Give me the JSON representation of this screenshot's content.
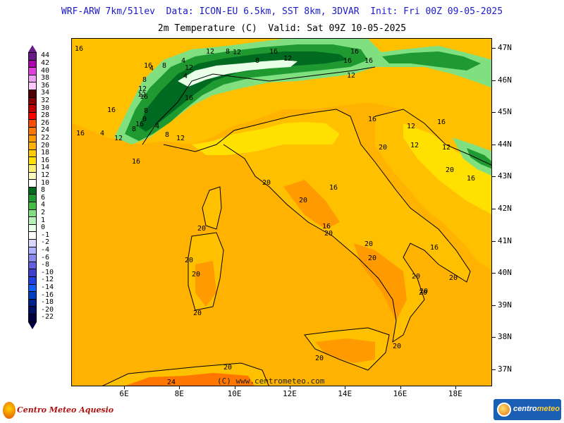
{
  "header": {
    "line1": "WRF-ARW 7km/51lev  Data: ICON-EU 6.5km, SST 8km, 3DVAR  Init: Fri 00Z 09-05-2025",
    "line2": "2m Temperature (C)  Valid: Sat 09Z 10-05-2025"
  },
  "legend": {
    "values": [
      "44",
      "42",
      "40",
      "38",
      "36",
      "34",
      "32",
      "30",
      "28",
      "26",
      "24",
      "22",
      "20",
      "18",
      "16",
      "14",
      "12",
      "10",
      "8",
      "6",
      "4",
      "2",
      "1",
      "0",
      "-1",
      "-2",
      "-4",
      "-6",
      "-8",
      "-10",
      "-12",
      "-14",
      "-16",
      "-18",
      "-20",
      "-22"
    ],
    "colors": [
      "#6a1a8a",
      "#b000b0",
      "#e040e0",
      "#f0a0f0",
      "#ffc8ff",
      "#500000",
      "#8a0000",
      "#c00000",
      "#ff0000",
      "#ff4d00",
      "#ff7700",
      "#ff9a00",
      "#ffb300",
      "#ffcc00",
      "#ffe000",
      "#fff070",
      "#fffbc0",
      "#ffffff",
      "#006a20",
      "#1f9a30",
      "#40c040",
      "#80e080",
      "#b8f0b8",
      "#e8ffe8",
      "#ffffff",
      "#d8d8ff",
      "#b0b0ff",
      "#8888ee",
      "#6060e0",
      "#4040d0",
      "#2040e0",
      "#1060ff",
      "#0040c0",
      "#002090",
      "#001060",
      "#000040"
    ]
  },
  "axes": {
    "latitudes": [
      "47N",
      "46N",
      "45N",
      "44N",
      "43N",
      "42N",
      "41N",
      "40N",
      "39N",
      "38N",
      "37N"
    ],
    "longitudes": [
      "6E",
      "8E",
      "10E",
      "12E",
      "14E",
      "16E",
      "18E"
    ]
  },
  "map": {
    "colors": {
      "sea": "#ffb300",
      "land": "#ffc000",
      "warm": "#ff9a00",
      "hot": "#ff7700",
      "cool": "#ffe000",
      "green_light": "#80e080",
      "green": "#1f9a30",
      "green_dark": "#006a20",
      "snow": "#e8ffe8"
    },
    "contour_labels": [
      "16",
      "12",
      "8",
      "4",
      "12",
      "8",
      "4",
      "8",
      "12",
      "16",
      "8",
      "0",
      "4",
      "8",
      "12",
      "4",
      "12",
      "16",
      "12",
      "16",
      "8",
      "4",
      "12",
      "16",
      "16",
      "8",
      "12",
      "16",
      "16",
      "16",
      "12",
      "16",
      "16",
      "16",
      "12",
      "12",
      "16",
      "20",
      "16",
      "20",
      "16",
      "12",
      "20",
      "16",
      "20",
      "16",
      "20",
      "20",
      "16",
      "20",
      "20",
      "20",
      "20",
      "20",
      "20",
      "20",
      "20",
      "20",
      "20",
      "20",
      "20",
      "24"
    ]
  },
  "copyright": "(C) www.centrometeo.com",
  "logos": {
    "left": "Centro Meteo Aquesio",
    "right_a": "centro",
    "right_b": "meteo"
  }
}
